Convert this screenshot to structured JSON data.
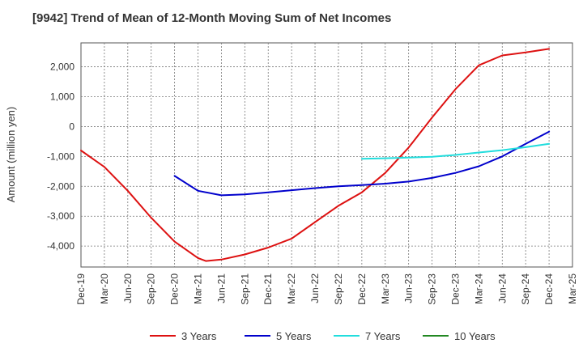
{
  "chart_data": {
    "type": "line",
    "title": "[9942]  Trend of Mean of 12-Month Moving Sum of Net Incomes",
    "ylabel": "Amount (million yen)",
    "xlabel": "",
    "x_ticks": [
      "Dec-19",
      "Mar-20",
      "Jun-20",
      "Sep-20",
      "Dec-20",
      "Mar-21",
      "Jun-21",
      "Sep-21",
      "Dec-21",
      "Mar-22",
      "Jun-22",
      "Sep-22",
      "Dec-22",
      "Mar-23",
      "Jun-23",
      "Sep-23",
      "Dec-23",
      "Mar-24",
      "Jun-24",
      "Sep-24",
      "Dec-24",
      "Mar-25"
    ],
    "y_ticks": [
      2000,
      1000,
      0,
      -1000,
      -2000,
      -3000,
      -4000
    ],
    "y_tick_labels": [
      "2,000",
      "1,000",
      "0",
      "-1,000",
      "-2,000",
      "-3,000",
      "-4,000"
    ],
    "ylim": [
      -4700,
      2800
    ],
    "grid": true,
    "legend_position": "bottom",
    "series": [
      {
        "name": "3 Years",
        "color": "#dd1111",
        "points": [
          [
            "Dec-19",
            -800
          ],
          [
            "Mar-20",
            -1350
          ],
          [
            "Jun-20",
            -2150
          ],
          [
            "Sep-20",
            -3050
          ],
          [
            "Dec-20",
            -3850
          ],
          [
            "Mar-21",
            -4400
          ],
          [
            "Apr-21",
            -4500
          ],
          [
            "Jun-21",
            -4450
          ],
          [
            "Sep-21",
            -4280
          ],
          [
            "Dec-21",
            -4050
          ],
          [
            "Mar-22",
            -3750
          ],
          [
            "Jun-22",
            -3200
          ],
          [
            "Sep-22",
            -2650
          ],
          [
            "Dec-22",
            -2200
          ],
          [
            "Mar-23",
            -1550
          ],
          [
            "Jun-23",
            -700
          ],
          [
            "Sep-23",
            300
          ],
          [
            "Dec-23",
            1250
          ],
          [
            "Mar-24",
            2050
          ],
          [
            "Jun-24",
            2380
          ],
          [
            "Sep-24",
            2480
          ],
          [
            "Dec-24",
            2600
          ]
        ]
      },
      {
        "name": "5 Years",
        "color": "#0000cc",
        "points": [
          [
            "Dec-20",
            -1650
          ],
          [
            "Mar-21",
            -2150
          ],
          [
            "Jun-21",
            -2300
          ],
          [
            "Sep-21",
            -2270
          ],
          [
            "Dec-21",
            -2200
          ],
          [
            "Mar-22",
            -2130
          ],
          [
            "Jun-22",
            -2060
          ],
          [
            "Sep-22",
            -2000
          ],
          [
            "Dec-22",
            -1960
          ],
          [
            "Mar-23",
            -1910
          ],
          [
            "Jun-23",
            -1840
          ],
          [
            "Sep-23",
            -1720
          ],
          [
            "Dec-23",
            -1550
          ],
          [
            "Mar-24",
            -1330
          ],
          [
            "Jun-24",
            -1000
          ],
          [
            "Sep-24",
            -580
          ],
          [
            "Dec-24",
            -170
          ]
        ]
      },
      {
        "name": "7 Years",
        "color": "#22dddd",
        "points": [
          [
            "Dec-22",
            -1080
          ],
          [
            "Mar-23",
            -1060
          ],
          [
            "Jun-23",
            -1040
          ],
          [
            "Sep-23",
            -1010
          ],
          [
            "Dec-23",
            -950
          ],
          [
            "Mar-24",
            -870
          ],
          [
            "Jun-24",
            -790
          ],
          [
            "Sep-24",
            -690
          ],
          [
            "Dec-24",
            -580
          ]
        ]
      },
      {
        "name": "10 Years",
        "color": "#228822",
        "points": []
      }
    ]
  }
}
